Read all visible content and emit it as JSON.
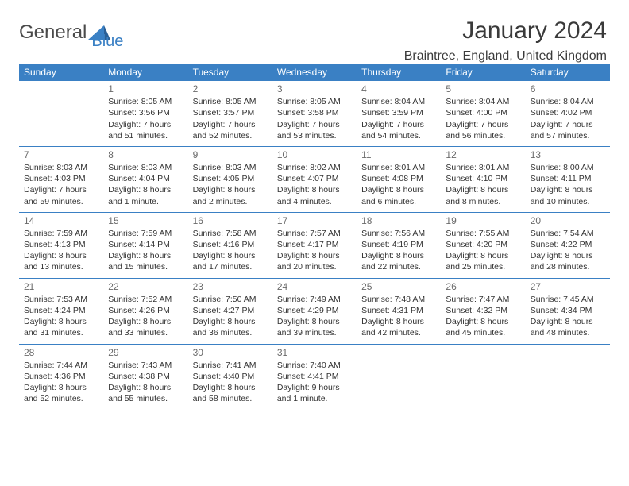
{
  "logo": {
    "text1": "General",
    "text2": "Blue"
  },
  "header": {
    "month": "January 2024",
    "location": "Braintree, England, United Kingdom"
  },
  "dayHeaders": [
    "Sunday",
    "Monday",
    "Tuesday",
    "Wednesday",
    "Thursday",
    "Friday",
    "Saturday"
  ],
  "colors": {
    "headerBg": "#3a80c4",
    "headerText": "#ffffff",
    "ruleColor": "#3a80c4",
    "bodyText": "#333333",
    "dayNum": "#6a6a6a"
  },
  "weeks": [
    [
      null,
      {
        "n": "1",
        "sun": "Sunrise: 8:05 AM",
        "set": "Sunset: 3:56 PM",
        "d1": "Daylight: 7 hours",
        "d2": "and 51 minutes."
      },
      {
        "n": "2",
        "sun": "Sunrise: 8:05 AM",
        "set": "Sunset: 3:57 PM",
        "d1": "Daylight: 7 hours",
        "d2": "and 52 minutes."
      },
      {
        "n": "3",
        "sun": "Sunrise: 8:05 AM",
        "set": "Sunset: 3:58 PM",
        "d1": "Daylight: 7 hours",
        "d2": "and 53 minutes."
      },
      {
        "n": "4",
        "sun": "Sunrise: 8:04 AM",
        "set": "Sunset: 3:59 PM",
        "d1": "Daylight: 7 hours",
        "d2": "and 54 minutes."
      },
      {
        "n": "5",
        "sun": "Sunrise: 8:04 AM",
        "set": "Sunset: 4:00 PM",
        "d1": "Daylight: 7 hours",
        "d2": "and 56 minutes."
      },
      {
        "n": "6",
        "sun": "Sunrise: 8:04 AM",
        "set": "Sunset: 4:02 PM",
        "d1": "Daylight: 7 hours",
        "d2": "and 57 minutes."
      }
    ],
    [
      {
        "n": "7",
        "sun": "Sunrise: 8:03 AM",
        "set": "Sunset: 4:03 PM",
        "d1": "Daylight: 7 hours",
        "d2": "and 59 minutes."
      },
      {
        "n": "8",
        "sun": "Sunrise: 8:03 AM",
        "set": "Sunset: 4:04 PM",
        "d1": "Daylight: 8 hours",
        "d2": "and 1 minute."
      },
      {
        "n": "9",
        "sun": "Sunrise: 8:03 AM",
        "set": "Sunset: 4:05 PM",
        "d1": "Daylight: 8 hours",
        "d2": "and 2 minutes."
      },
      {
        "n": "10",
        "sun": "Sunrise: 8:02 AM",
        "set": "Sunset: 4:07 PM",
        "d1": "Daylight: 8 hours",
        "d2": "and 4 minutes."
      },
      {
        "n": "11",
        "sun": "Sunrise: 8:01 AM",
        "set": "Sunset: 4:08 PM",
        "d1": "Daylight: 8 hours",
        "d2": "and 6 minutes."
      },
      {
        "n": "12",
        "sun": "Sunrise: 8:01 AM",
        "set": "Sunset: 4:10 PM",
        "d1": "Daylight: 8 hours",
        "d2": "and 8 minutes."
      },
      {
        "n": "13",
        "sun": "Sunrise: 8:00 AM",
        "set": "Sunset: 4:11 PM",
        "d1": "Daylight: 8 hours",
        "d2": "and 10 minutes."
      }
    ],
    [
      {
        "n": "14",
        "sun": "Sunrise: 7:59 AM",
        "set": "Sunset: 4:13 PM",
        "d1": "Daylight: 8 hours",
        "d2": "and 13 minutes."
      },
      {
        "n": "15",
        "sun": "Sunrise: 7:59 AM",
        "set": "Sunset: 4:14 PM",
        "d1": "Daylight: 8 hours",
        "d2": "and 15 minutes."
      },
      {
        "n": "16",
        "sun": "Sunrise: 7:58 AM",
        "set": "Sunset: 4:16 PM",
        "d1": "Daylight: 8 hours",
        "d2": "and 17 minutes."
      },
      {
        "n": "17",
        "sun": "Sunrise: 7:57 AM",
        "set": "Sunset: 4:17 PM",
        "d1": "Daylight: 8 hours",
        "d2": "and 20 minutes."
      },
      {
        "n": "18",
        "sun": "Sunrise: 7:56 AM",
        "set": "Sunset: 4:19 PM",
        "d1": "Daylight: 8 hours",
        "d2": "and 22 minutes."
      },
      {
        "n": "19",
        "sun": "Sunrise: 7:55 AM",
        "set": "Sunset: 4:20 PM",
        "d1": "Daylight: 8 hours",
        "d2": "and 25 minutes."
      },
      {
        "n": "20",
        "sun": "Sunrise: 7:54 AM",
        "set": "Sunset: 4:22 PM",
        "d1": "Daylight: 8 hours",
        "d2": "and 28 minutes."
      }
    ],
    [
      {
        "n": "21",
        "sun": "Sunrise: 7:53 AM",
        "set": "Sunset: 4:24 PM",
        "d1": "Daylight: 8 hours",
        "d2": "and 31 minutes."
      },
      {
        "n": "22",
        "sun": "Sunrise: 7:52 AM",
        "set": "Sunset: 4:26 PM",
        "d1": "Daylight: 8 hours",
        "d2": "and 33 minutes."
      },
      {
        "n": "23",
        "sun": "Sunrise: 7:50 AM",
        "set": "Sunset: 4:27 PM",
        "d1": "Daylight: 8 hours",
        "d2": "and 36 minutes."
      },
      {
        "n": "24",
        "sun": "Sunrise: 7:49 AM",
        "set": "Sunset: 4:29 PM",
        "d1": "Daylight: 8 hours",
        "d2": "and 39 minutes."
      },
      {
        "n": "25",
        "sun": "Sunrise: 7:48 AM",
        "set": "Sunset: 4:31 PM",
        "d1": "Daylight: 8 hours",
        "d2": "and 42 minutes."
      },
      {
        "n": "26",
        "sun": "Sunrise: 7:47 AM",
        "set": "Sunset: 4:32 PM",
        "d1": "Daylight: 8 hours",
        "d2": "and 45 minutes."
      },
      {
        "n": "27",
        "sun": "Sunrise: 7:45 AM",
        "set": "Sunset: 4:34 PM",
        "d1": "Daylight: 8 hours",
        "d2": "and 48 minutes."
      }
    ],
    [
      {
        "n": "28",
        "sun": "Sunrise: 7:44 AM",
        "set": "Sunset: 4:36 PM",
        "d1": "Daylight: 8 hours",
        "d2": "and 52 minutes."
      },
      {
        "n": "29",
        "sun": "Sunrise: 7:43 AM",
        "set": "Sunset: 4:38 PM",
        "d1": "Daylight: 8 hours",
        "d2": "and 55 minutes."
      },
      {
        "n": "30",
        "sun": "Sunrise: 7:41 AM",
        "set": "Sunset: 4:40 PM",
        "d1": "Daylight: 8 hours",
        "d2": "and 58 minutes."
      },
      {
        "n": "31",
        "sun": "Sunrise: 7:40 AM",
        "set": "Sunset: 4:41 PM",
        "d1": "Daylight: 9 hours",
        "d2": "and 1 minute."
      },
      null,
      null,
      null
    ]
  ]
}
